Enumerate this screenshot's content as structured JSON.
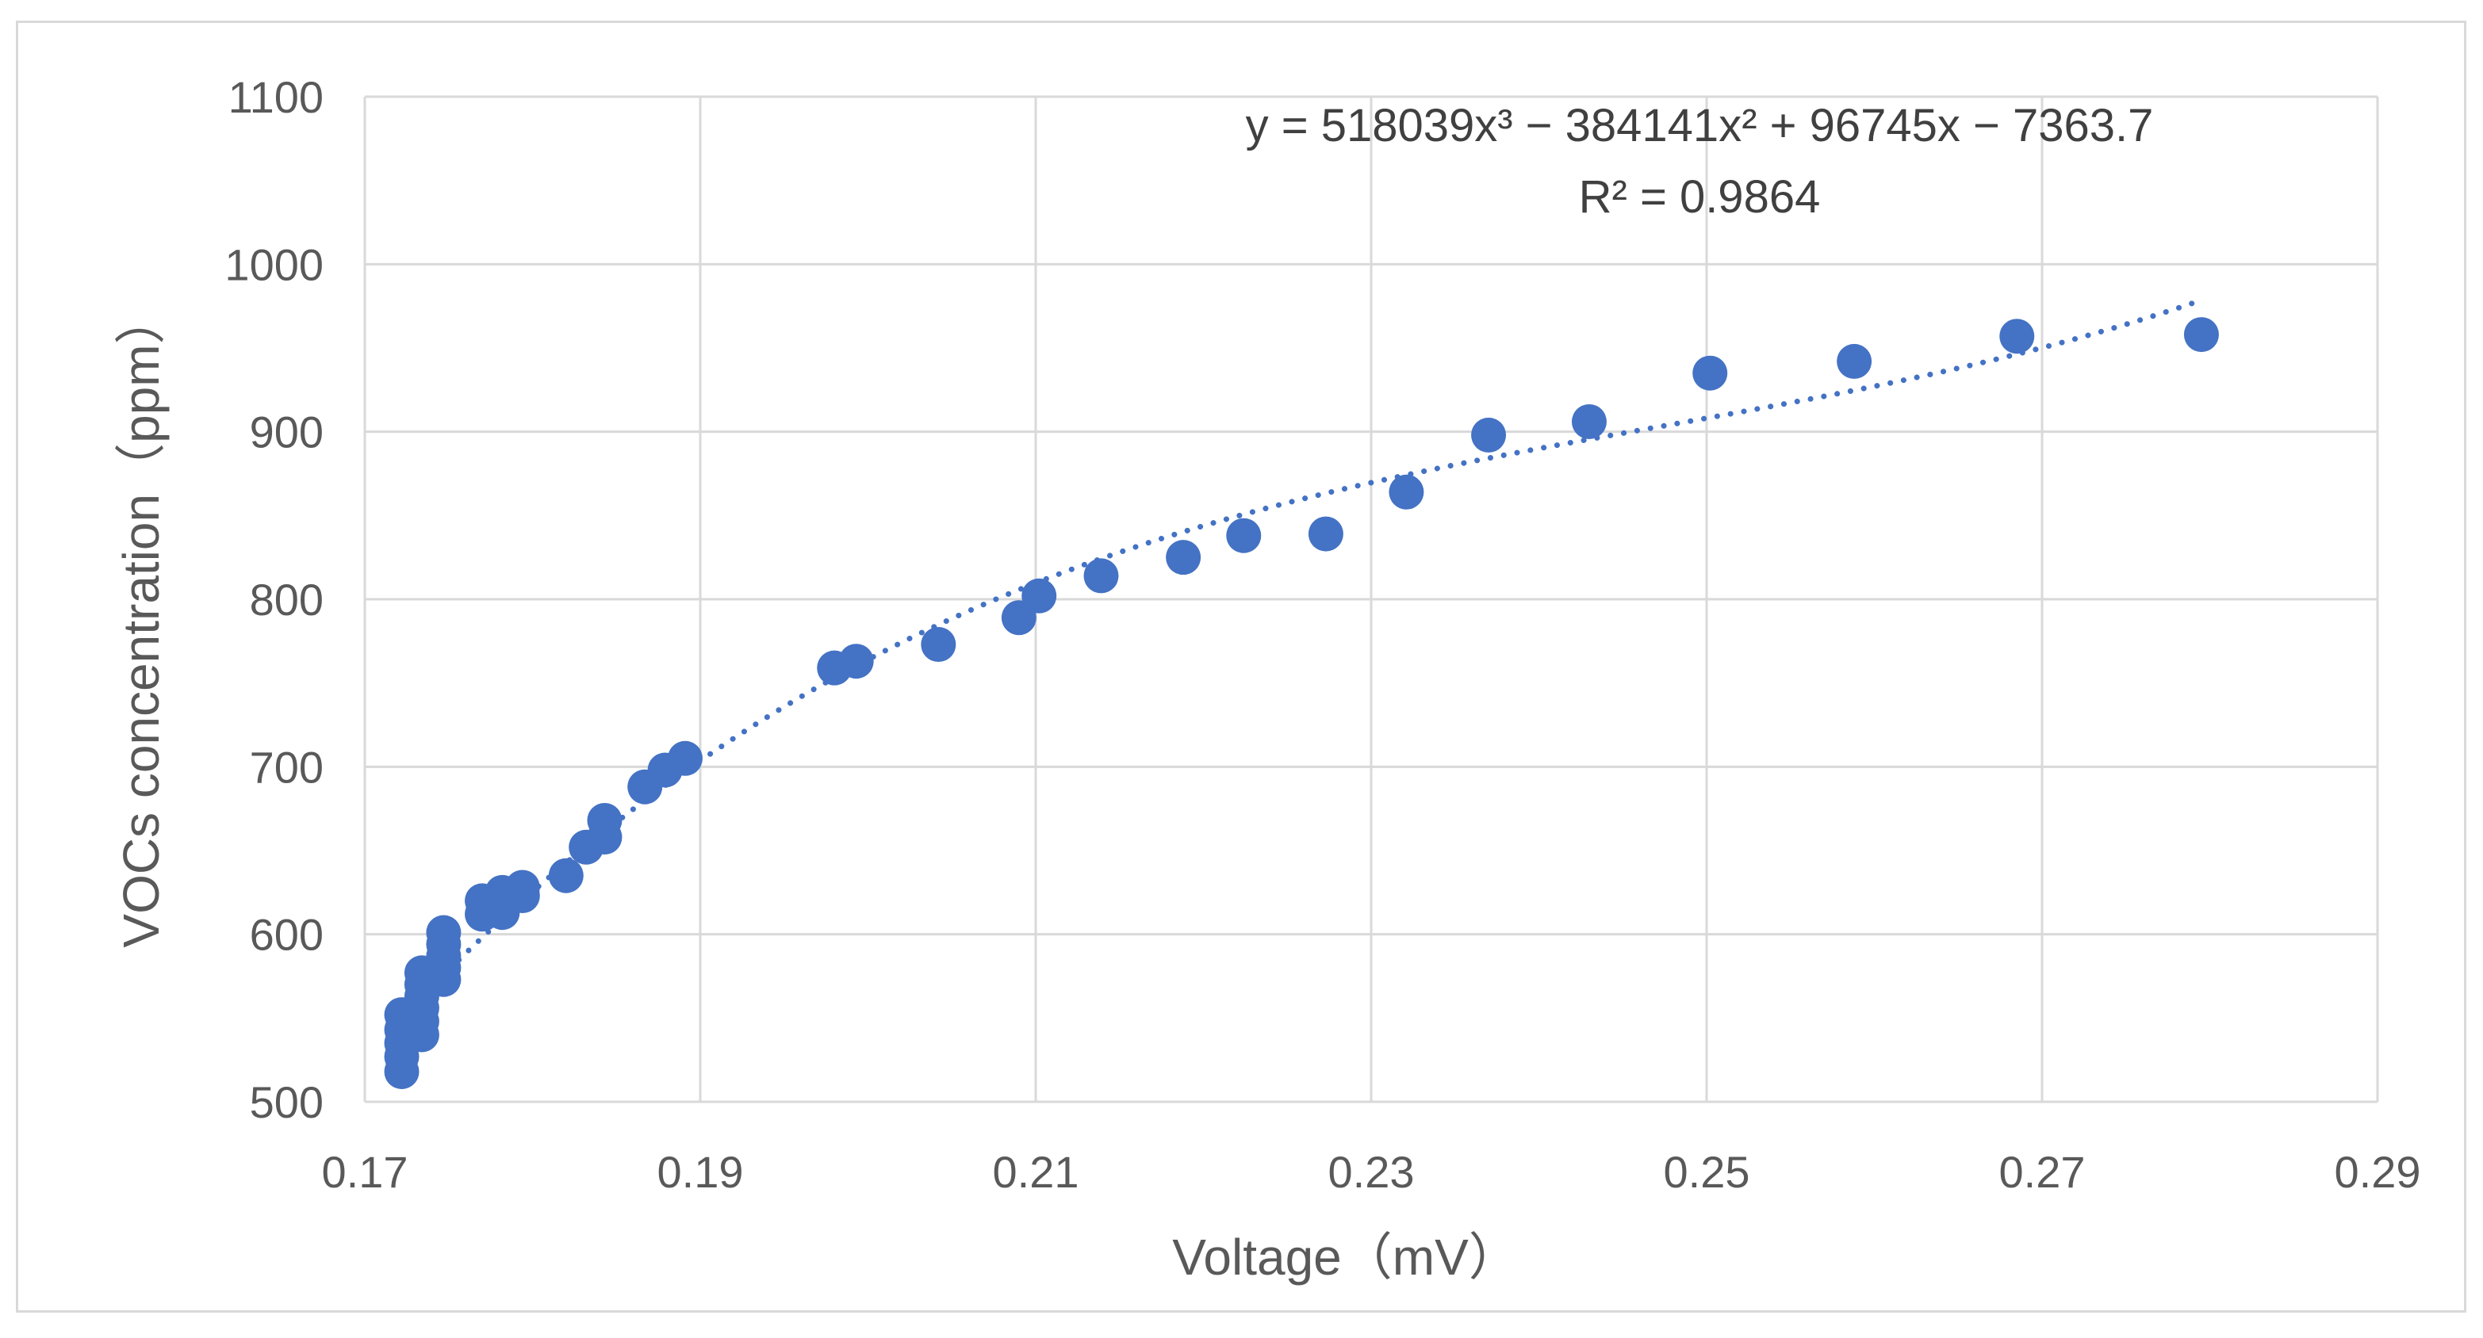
{
  "chart_data": {
    "type": "scatter",
    "title": "",
    "xlabel": "Voltage（mV）",
    "ylabel": "VOCs concentration（ppm）",
    "xlim": [
      0.17,
      0.29
    ],
    "ylim": [
      500,
      1100
    ],
    "x_ticks": [
      0.17,
      0.19,
      0.21,
      0.23,
      0.25,
      0.27,
      0.29
    ],
    "x_tick_labels": [
      "0.17",
      "0.19",
      "0.21",
      "0.23",
      "0.25",
      "0.27",
      "0.29"
    ],
    "y_ticks": [
      500,
      600,
      700,
      800,
      900,
      1000,
      1100
    ],
    "y_tick_labels": [
      "500",
      "600",
      "700",
      "800",
      "900",
      "1000",
      "1100"
    ],
    "grid": true,
    "colors": {
      "marker": "#4472c4",
      "trendline": "#4472c4",
      "grid": "#d9d9d9"
    },
    "series": [
      {
        "name": "VOCs",
        "points": [
          [
            0.1722,
            518
          ],
          [
            0.1722,
            527
          ],
          [
            0.1722,
            535
          ],
          [
            0.1722,
            543
          ],
          [
            0.1722,
            552
          ],
          [
            0.1734,
            540
          ],
          [
            0.1734,
            548
          ],
          [
            0.1734,
            556
          ],
          [
            0.1734,
            563
          ],
          [
            0.1734,
            570
          ],
          [
            0.1734,
            577
          ],
          [
            0.1747,
            573
          ],
          [
            0.1747,
            580
          ],
          [
            0.1747,
            587
          ],
          [
            0.1747,
            594
          ],
          [
            0.1747,
            601
          ],
          [
            0.177,
            612
          ],
          [
            0.177,
            620
          ],
          [
            0.1782,
            613
          ],
          [
            0.1782,
            621
          ],
          [
            0.1782,
            625
          ],
          [
            0.1794,
            623
          ],
          [
            0.1794,
            628
          ],
          [
            0.182,
            635
          ],
          [
            0.1832,
            652
          ],
          [
            0.1843,
            658
          ],
          [
            0.1843,
            668
          ],
          [
            0.1867,
            688
          ],
          [
            0.1879,
            698
          ],
          [
            0.1891,
            705
          ],
          [
            0.198,
            759
          ],
          [
            0.1993,
            763
          ],
          [
            0.2042,
            773
          ],
          [
            0.209,
            789
          ],
          [
            0.2102,
            802
          ],
          [
            0.2139,
            814
          ],
          [
            0.2188,
            825
          ],
          [
            0.2224,
            838
          ],
          [
            0.2273,
            839
          ],
          [
            0.2321,
            864
          ],
          [
            0.237,
            898
          ],
          [
            0.243,
            906
          ],
          [
            0.2502,
            935
          ],
          [
            0.2588,
            942
          ],
          [
            0.2685,
            957
          ],
          [
            0.2795,
            958
          ]
        ]
      }
    ],
    "trendline": {
      "type": "polynomial",
      "order": 3,
      "coefficients": [
        518039,
        -384141,
        96745,
        -7363.7
      ],
      "x_range": [
        0.1722,
        0.2795
      ],
      "equation_text": "y = 518039x³ − 384141x² + 96745x − 7363.7",
      "r2_text": "R² = 0.9864"
    }
  }
}
